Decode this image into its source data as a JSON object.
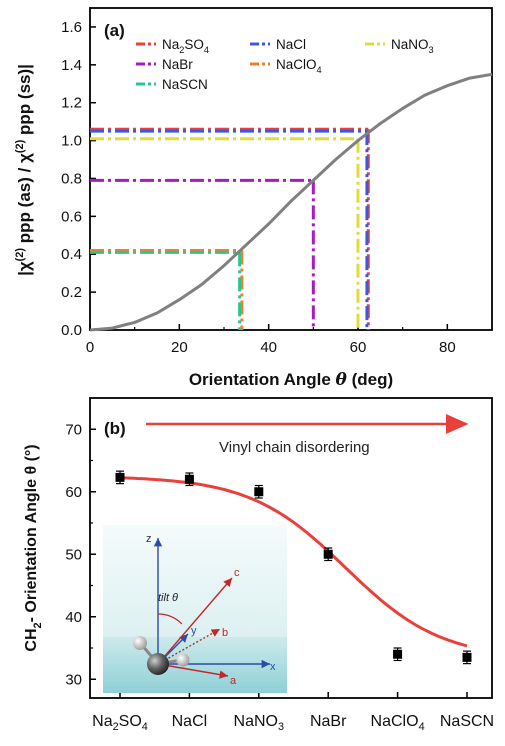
{
  "panel_a": {
    "label": "(a)",
    "ylabel_parts": [
      "|χ",
      "(2)",
      " ppp (as) / χ",
      "(2)",
      " ppp (ss)|"
    ],
    "xlabel_parts": [
      "Orientation Angle ",
      "θ",
      " (deg)"
    ],
    "legend_entries": [
      {
        "name": "Na",
        "sub": "2",
        "rest": "SO",
        "sub2": "4"
      },
      {
        "name": "NaCl",
        "sub": "",
        "rest": "",
        "sub2": ""
      },
      {
        "name": "NaNO",
        "sub": "3",
        "rest": "",
        "sub2": ""
      },
      {
        "name": "NaBr",
        "sub": "",
        "rest": "",
        "sub2": ""
      },
      {
        "name": "NaClO",
        "sub": "4",
        "rest": "",
        "sub2": ""
      },
      {
        "name": "NaSCN",
        "sub": "",
        "rest": "",
        "sub2": ""
      }
    ]
  },
  "panel_b": {
    "label": "(b)",
    "annotation": "Vinyl chain disordering",
    "ylabel_parts": [
      "CH",
      "2",
      "- Orientation Angle θ (°)"
    ],
    "inset": {
      "axis_z": "z",
      "axis_y": "y",
      "axis_x": "x",
      "vec_a": "a",
      "vec_b": "b",
      "vec_c": "c",
      "tilt": "tilt θ"
    },
    "category_labels": [
      {
        "main": "Na",
        "sub": "2",
        "rest": "SO",
        "sub2": "4"
      },
      {
        "main": "NaCl",
        "sub": "",
        "rest": "",
        "sub2": ""
      },
      {
        "main": "NaNO",
        "sub": "3",
        "rest": "",
        "sub2": ""
      },
      {
        "main": "NaBr",
        "sub": "",
        "rest": "",
        "sub2": ""
      },
      {
        "main": "NaClO",
        "sub": "4",
        "rest": "",
        "sub2": ""
      },
      {
        "main": "NaSCN",
        "sub": "",
        "rest": "",
        "sub2": ""
      }
    ]
  },
  "chart_data": [
    {
      "type": "line",
      "title": "(a)",
      "xlabel": "Orientation Angle θ (deg)",
      "ylabel": "|χ(2) ppp (as) / χ(2) ppp (ss)|",
      "xlim": [
        0,
        90
      ],
      "ylim": [
        0,
        1.7
      ],
      "xticks": [
        0,
        20,
        40,
        60,
        80
      ],
      "yticks": [
        0.0,
        0.2,
        0.4,
        0.6,
        0.8,
        1.0,
        1.2,
        1.4,
        1.6
      ],
      "curve": {
        "x": [
          0,
          5,
          10,
          15,
          20,
          25,
          30,
          35,
          40,
          45,
          50,
          55,
          60,
          65,
          70,
          75,
          80,
          85,
          90
        ],
        "y": [
          0.0,
          0.01,
          0.04,
          0.09,
          0.16,
          0.24,
          0.34,
          0.45,
          0.56,
          0.68,
          0.79,
          0.9,
          1.0,
          1.09,
          1.17,
          1.24,
          1.29,
          1.33,
          1.35
        ],
        "color": "#808080"
      },
      "series": [
        {
          "name": "Na2SO4",
          "color": "#e8413c",
          "x": 62.3,
          "y": 1.06
        },
        {
          "name": "NaCl",
          "color": "#3a57e8",
          "x": 62.0,
          "y": 1.05
        },
        {
          "name": "NaNO3",
          "color": "#e0dd3a",
          "x": 60.0,
          "y": 1.01
        },
        {
          "name": "NaBr",
          "color": "#a51cc0",
          "x": 50.0,
          "y": 0.79
        },
        {
          "name": "NaClO4",
          "color": "#f07f2a",
          "x": 34.0,
          "y": 0.42
        },
        {
          "name": "NaSCN",
          "color": "#2cc58a",
          "x": 33.5,
          "y": 0.41
        }
      ],
      "legend_position": "top"
    },
    {
      "type": "scatter",
      "title": "(b)",
      "xlabel": "",
      "ylabel": "CH2- Orientation Angle θ (°)",
      "categories": [
        "Na2SO4",
        "NaCl",
        "NaNO3",
        "NaBr",
        "NaClO4",
        "NaSCN"
      ],
      "values": [
        62.3,
        62.0,
        60.0,
        50.0,
        34.0,
        33.5
      ],
      "errors": [
        1.0,
        1.0,
        1.0,
        1.0,
        1.0,
        1.0
      ],
      "ylim": [
        27,
        75
      ],
      "yticks": [
        30,
        40,
        50,
        60,
        70
      ],
      "fit_color": "#e8413c",
      "marker_color": "#000000",
      "annotation": "Vinyl chain disordering"
    }
  ]
}
